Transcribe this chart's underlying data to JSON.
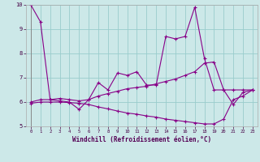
{
  "xlabel": "Windchill (Refroidissement éolien,°C)",
  "bg_color": "#cce8e8",
  "line_color": "#880088",
  "grid_color": "#99cccc",
  "xlim": [
    -0.5,
    23.5
  ],
  "ylim": [
    5.0,
    10.0
  ],
  "yticks": [
    5,
    6,
    7,
    8,
    9,
    10
  ],
  "xticks": [
    0,
    1,
    2,
    3,
    4,
    5,
    6,
    7,
    8,
    9,
    10,
    11,
    12,
    13,
    14,
    15,
    16,
    17,
    18,
    19,
    20,
    21,
    22,
    23
  ],
  "s1_x": [
    0,
    1,
    2,
    3,
    4,
    5,
    6,
    7,
    8,
    9,
    10,
    11,
    12,
    13,
    14,
    15,
    16,
    17,
    18,
    19,
    20,
    21,
    22,
    23
  ],
  "s1_y": [
    10.0,
    9.3,
    6.1,
    6.05,
    6.0,
    5.7,
    6.1,
    6.8,
    6.5,
    7.2,
    7.1,
    7.25,
    6.7,
    6.7,
    8.7,
    8.6,
    8.7,
    9.9,
    7.8,
    6.5,
    6.5,
    5.9,
    6.4,
    6.5
  ],
  "s2_x": [
    0,
    1,
    2,
    3,
    4,
    5,
    6,
    7,
    8,
    9,
    10,
    11,
    12,
    13,
    14,
    15,
    16,
    17,
    18,
    19,
    20,
    21,
    22,
    23
  ],
  "s2_y": [
    6.0,
    6.1,
    6.1,
    6.15,
    6.1,
    6.05,
    6.1,
    6.25,
    6.35,
    6.45,
    6.55,
    6.6,
    6.65,
    6.75,
    6.85,
    6.95,
    7.1,
    7.25,
    7.6,
    7.65,
    6.5,
    6.5,
    6.5,
    6.5
  ],
  "s3_x": [
    0,
    1,
    2,
    3,
    4,
    5,
    6,
    7,
    8,
    9,
    10,
    11,
    12,
    13,
    14,
    15,
    16,
    17,
    18,
    19,
    20,
    21,
    22,
    23
  ],
  "s3_y": [
    5.95,
    6.0,
    6.0,
    6.0,
    5.98,
    5.95,
    5.9,
    5.8,
    5.72,
    5.63,
    5.55,
    5.5,
    5.43,
    5.38,
    5.3,
    5.25,
    5.2,
    5.15,
    5.1,
    5.1,
    5.3,
    6.1,
    6.25,
    6.5
  ]
}
